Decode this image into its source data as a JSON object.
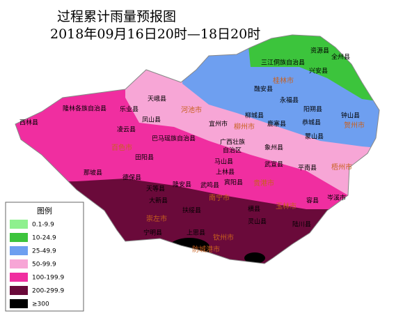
{
  "header": {
    "title": "过程累计雨量预报图",
    "subtitle": "2018年09月16日20时—18日20时"
  },
  "legend": {
    "title": "图例",
    "items": [
      {
        "label": "0.1-9.9",
        "color": "#8ef08e"
      },
      {
        "label": "10-24.9",
        "color": "#3cc43c"
      },
      {
        "label": "25-49.9",
        "color": "#6e9ff0"
      },
      {
        "label": "50-99.9",
        "color": "#f7a6d6"
      },
      {
        "label": "100-199.9",
        "color": "#f02ea0"
      },
      {
        "label": "200-299.9",
        "color": "#6a0a3a"
      },
      {
        "label": "≥300",
        "color": "#000000"
      }
    ]
  },
  "places": [
    "三江侗族自治县",
    "资源县",
    "全州县",
    "兴安县",
    "融安县",
    "永福县",
    "桂林市",
    "河池市",
    "天峨县",
    "隆林各族自治县",
    "乐业县",
    "西林县",
    "凤山县",
    "凌云县",
    "柳城县",
    "鹿寨县",
    "阳朔县",
    "恭城县",
    "钟山县",
    "贺州市",
    "宜州市",
    "柳州市",
    "蒙山县",
    "象州县",
    "巴马瑶族自治县",
    "百色市",
    "广西壮族",
    "自治区",
    "田阳县",
    "马山县",
    "武宣县",
    "平南县",
    "梧州市",
    "那坡县",
    "上林县",
    "德保县",
    "宾阳县",
    "贵港市",
    "天等县",
    "隆安县",
    "武鸣县",
    "岑溪市",
    "大新县",
    "南宁市",
    "玉林市",
    "容县",
    "扶绥县",
    "横县",
    "崇左市",
    "灵山县",
    "宁明县",
    "陆川县",
    "上思县",
    "钦州市",
    "防城港市"
  ]
}
